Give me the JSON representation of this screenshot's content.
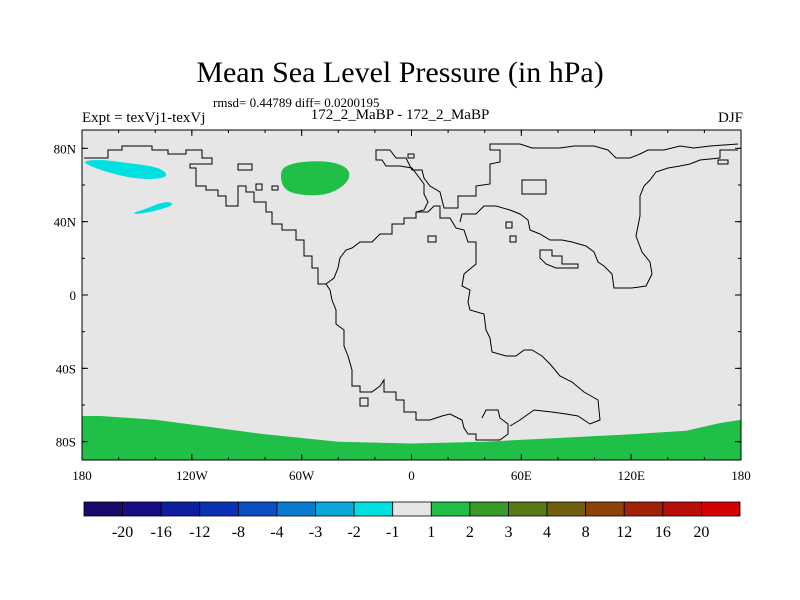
{
  "chart_data": {
    "type": "heatmap",
    "title": "Mean Sea Level Pressure (in hPa)",
    "stats_text": "rmsd= 0.44789 diff= 0.0200195",
    "left_label": "Expt = texVj1-texVj",
    "center_label": "172_2_MaBP - 172_2_MaBP",
    "right_label": "DJF",
    "xaxis": {
      "range": [
        -180,
        180
      ],
      "ticks": [
        {
          "value": -180,
          "label": "180"
        },
        {
          "value": -120,
          "label": "120W"
        },
        {
          "value": -60,
          "label": "60W"
        },
        {
          "value": 0,
          "label": "0"
        },
        {
          "value": 60,
          "label": "60E"
        },
        {
          "value": 120,
          "label": "120E"
        },
        {
          "value": 180,
          "label": "180"
        }
      ]
    },
    "yaxis": {
      "range": [
        -90,
        90
      ],
      "ticks": [
        {
          "value": 80,
          "label": "80N"
        },
        {
          "value": 40,
          "label": "40N"
        },
        {
          "value": 0,
          "label": "0"
        },
        {
          "value": -40,
          "label": "40S"
        },
        {
          "value": -80,
          "label": "80S"
        }
      ]
    },
    "background_value_bin": "-1 to 1",
    "anomaly_regions": [
      {
        "name": "north-pacific-negative",
        "bin": "-2 to -1",
        "color": "#00e0e0",
        "polygon": [
          [
            -180,
            73
          ],
          [
            -170,
            74
          ],
          [
            -155,
            72
          ],
          [
            -140,
            70
          ],
          [
            -134,
            67
          ],
          [
            -134,
            64
          ],
          [
            -145,
            63
          ],
          [
            -160,
            65
          ],
          [
            -175,
            70
          ]
        ]
      },
      {
        "name": "pacific-small-negative",
        "bin": "-2 to -1",
        "color": "#00e0e0",
        "polygon": [
          [
            -152,
            45
          ],
          [
            -145,
            47
          ],
          [
            -138,
            50
          ],
          [
            -132,
            51
          ],
          [
            -130,
            49
          ],
          [
            -136,
            47
          ],
          [
            -144,
            45
          ],
          [
            -151,
            44
          ]
        ]
      },
      {
        "name": "greenland-positive",
        "bin": "1 to 2",
        "color": "#1fbf48",
        "polygon": [
          [
            -72,
            67
          ],
          [
            -68,
            71
          ],
          [
            -58,
            73
          ],
          [
            -44,
            73
          ],
          [
            -34,
            69
          ],
          [
            -34,
            62
          ],
          [
            -44,
            55
          ],
          [
            -58,
            54
          ],
          [
            -70,
            57
          ]
        ]
      },
      {
        "name": "antarctic-positive",
        "bin": "1 to 2",
        "color": "#1fbf48",
        "polygon": [
          [
            -180,
            -66
          ],
          [
            -170,
            -66
          ],
          [
            -140,
            -68
          ],
          [
            -110,
            -72
          ],
          [
            -80,
            -76
          ],
          [
            -40,
            -80
          ],
          [
            0,
            -81
          ],
          [
            40,
            -80
          ],
          [
            80,
            -78
          ],
          [
            120,
            -76
          ],
          [
            150,
            -74
          ],
          [
            168,
            -70
          ],
          [
            180,
            -68
          ],
          [
            180,
            -90
          ],
          [
            -180,
            -90
          ]
        ]
      }
    ],
    "colorbar": {
      "labels": [
        "-20",
        "-16",
        "-12",
        "-8",
        "-4",
        "-3",
        "-2",
        "-1",
        "1",
        "2",
        "3",
        "4",
        "8",
        "12",
        "16",
        "20"
      ],
      "colors": [
        "#1a0a6b",
        "#180e86",
        "#0e1ea0",
        "#0a32b4",
        "#0a4fc4",
        "#0a7ccf",
        "#0aa8d8",
        "#00e0e0",
        "#e6e6e6",
        "#1fbf48",
        "#3a9a2a",
        "#5a7a16",
        "#70600e",
        "#8c420a",
        "#a02208",
        "#b80e0a",
        "#d40000"
      ]
    }
  }
}
